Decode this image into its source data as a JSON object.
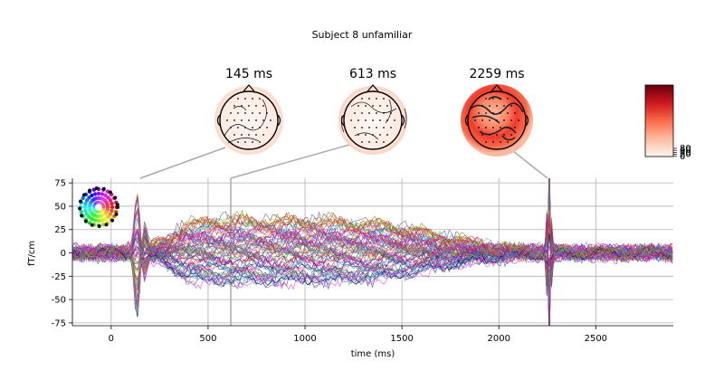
{
  "figure": {
    "title": "Subject 8 unfamiliar",
    "topo_titles": [
      "145 ms",
      "613 ms",
      "2259 ms"
    ]
  },
  "colorbar": {
    "cmap": "Reds",
    "tick_labels": [
      "80",
      "60",
      "40",
      "20",
      "0"
    ]
  },
  "chart_data": {
    "type": "line",
    "title": "",
    "xlabel": "time (ms)",
    "ylabel": "fT/cm",
    "xlim": [
      -200,
      2900
    ],
    "ylim": [
      -78,
      80
    ],
    "xticks": [
      0,
      500,
      1000,
      1500,
      2000,
      2500
    ],
    "yticks": [
      75,
      50,
      25,
      0,
      -25,
      -50,
      -75
    ],
    "grid": true,
    "legend": "sensor-position color sphere, top-left",
    "topomap_times_ms": [
      145,
      613,
      2259
    ],
    "n_channels": 204,
    "peak_components": [
      {
        "time_ms": 145,
        "amplitude": 80
      },
      {
        "time_ms": 613,
        "amplitude": 15
      },
      {
        "time_ms": 2259,
        "amplitude": 80
      }
    ],
    "sustained_window_ms": [
      400,
      1600
    ],
    "sustained_amplitude_range": [
      -50,
      40
    ]
  }
}
